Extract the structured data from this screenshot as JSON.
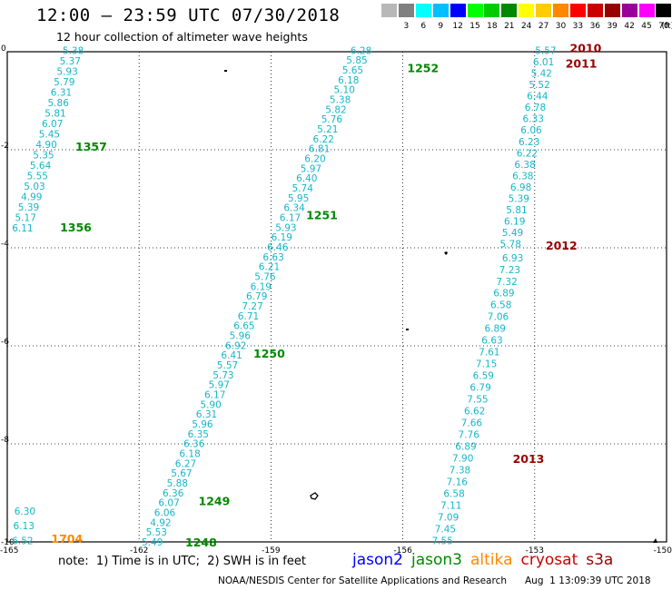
{
  "header": {
    "title": "12:00 – 23:59 UTC 07/30/2018",
    "subtitle": "12 hour collection of altimeter wave heights"
  },
  "color_scale": {
    "unit": "(ft)",
    "stops": [
      {
        "label": "3",
        "color": "#808080"
      },
      {
        "label": "6",
        "color": "#00ffff"
      },
      {
        "label": "9",
        "color": "#00bfff"
      },
      {
        "label": "12",
        "color": "#0000ff"
      },
      {
        "label": "15",
        "color": "#00ff00"
      },
      {
        "label": "18",
        "color": "#00cc00"
      },
      {
        "label": "21",
        "color": "#008800"
      },
      {
        "label": "24",
        "color": "#ffff00"
      },
      {
        "label": "27",
        "color": "#ffcc00"
      },
      {
        "label": "30",
        "color": "#ff8800"
      },
      {
        "label": "33",
        "color": "#ff0000"
      },
      {
        "label": "36",
        "color": "#cc0000"
      },
      {
        "label": "39",
        "color": "#990000"
      },
      {
        "label": "42",
        "color": "#990099"
      },
      {
        "label": "45",
        "color": "#ff00ff"
      },
      {
        "label": "70",
        "color": "#000000"
      }
    ],
    "extra_box_color": "#b8b8b8"
  },
  "map_axes": {
    "x_ticks": [
      "-165",
      "-162",
      "-159",
      "-156",
      "-153",
      "-150"
    ],
    "y_ticks": [
      "0",
      "-2",
      "-4",
      "-6",
      "-8",
      "-10"
    ],
    "xlim": [
      -165,
      -150
    ],
    "ylim": [
      -10,
      0
    ]
  },
  "colors": {
    "value_text": "#17b6c8",
    "jason2": "#0000ff",
    "jason3": "#008800",
    "altika": "#ff8800",
    "cryosat": "#cc0000",
    "s3a": "#990000"
  },
  "chart_data": {
    "type": "scatter",
    "value_unit": "ft",
    "passes": [
      {
        "satellite": "jason3",
        "labels": [
          {
            "text": "1357",
            "at": [
              -163.45,
              -1.93
            ]
          },
          {
            "text": "1356",
            "at": [
              -163.8,
              -3.57
            ]
          }
        ],
        "values": [
          "5.38",
          "5.37",
          "5.93",
          "5.79",
          "6.31",
          "5.86",
          "5.81",
          "6.07",
          "5.45",
          "4.90",
          "5.35",
          "5.64",
          "5.55",
          "5.03",
          "4.99",
          "5.39",
          "5.17",
          "6.11"
        ],
        "start": [
          -163.5,
          0.03
        ],
        "end": [
          -164.65,
          -3.59
        ]
      },
      {
        "satellite": "jason3",
        "labels": [
          {
            "text": "1252",
            "at": [
              -155.9,
              -0.32
            ]
          },
          {
            "text": "1251",
            "at": [
              -158.2,
              -3.32
            ]
          },
          {
            "text": "1250",
            "at": [
              -159.4,
              -6.15
            ]
          },
          {
            "text": "1249",
            "at": [
              -160.65,
              -9.16
            ]
          },
          {
            "text": "1248",
            "at": [
              -160.95,
              -10.0
            ]
          }
        ],
        "values": [
          "6.28",
          "5.85",
          "5.65",
          "6.18",
          "5.10",
          "5.38",
          "5.82",
          "5.76",
          "5.21",
          "6.22",
          "6.81",
          "6.20",
          "5.97",
          "6.40",
          "5.74",
          "5.95",
          "6.34",
          "6.17",
          "5.93",
          "6.19",
          "6.46",
          "6.63",
          "6.21",
          "5.76",
          "6.19",
          "6.79",
          "7.27",
          "6.71",
          "6.65",
          "5.96",
          "6.92",
          "6.41",
          "5.57",
          "5.73",
          "5.97",
          "6.17",
          "5.90",
          "6.31",
          "5.96",
          "6.35",
          "6.36",
          "6.18",
          "6.27",
          "5.67",
          "5.88",
          "6.36",
          "6.07",
          "6.06",
          "4.92",
          "5.53",
          "5.49"
        ],
        "start": [
          -156.95,
          0.03
        ],
        "end": [
          -161.7,
          -10.0
        ]
      },
      {
        "satellite": "s3a",
        "labels": [
          {
            "text": "2010",
            "at": [
              -152.2,
              0.08
            ]
          },
          {
            "text": "2011",
            "at": [
              -152.3,
              -0.23
            ]
          },
          {
            "text": "2012",
            "at": [
              -152.75,
              -3.94
            ]
          },
          {
            "text": "2013",
            "at": [
              -153.5,
              -8.3
            ]
          }
        ],
        "values": [
          "5.57",
          "6.01",
          "5.42",
          "5.52",
          "6.44",
          "6.78",
          "6.33",
          "6.06",
          "6.23",
          "6.22",
          "6.38",
          "6.38",
          "6.98",
          "5.39",
          "5.81",
          "6.19",
          "5.49",
          "5.78"
        ],
        "start": [
          -152.75,
          0.03
        ],
        "end": [
          -153.55,
          -3.92
        ]
      },
      {
        "satellite": "s3a",
        "labels": [],
        "values": [
          "6.93",
          "7.23",
          "7.32",
          "6.89",
          "6.58",
          "7.06",
          "6.89",
          "6.63",
          "7.61",
          "7.15",
          "6.59",
          "6.79",
          "7.55",
          "6.62",
          "7.66",
          "7.76",
          "6.89",
          "7.90",
          "7.38",
          "7.16",
          "6.58",
          "7.11",
          "7.09",
          "7.45",
          "7.55"
        ],
        "start": [
          -153.5,
          -4.2
        ],
        "end": [
          -155.1,
          -9.97
        ]
      },
      {
        "satellite": "altika",
        "labels": [
          {
            "text": "1704",
            "at": [
              -164.0,
              -9.93
            ]
          }
        ],
        "values": [
          "6.30",
          "6.13",
          "6.52"
        ],
        "start": [
          -164.6,
          -9.37
        ],
        "end": [
          -164.65,
          -9.97
        ]
      }
    ]
  },
  "footer": {
    "note": "note:  1) Time is in UTC;  2) SWH is in feet",
    "legend": [
      "jason2",
      "jason3",
      "altika",
      "cryosat",
      "s3a"
    ],
    "credit": "NOAA/NESDIS Center for Satellite Applications and Research",
    "timestamp": "Aug  1 13:09:39 UTC 2018"
  }
}
